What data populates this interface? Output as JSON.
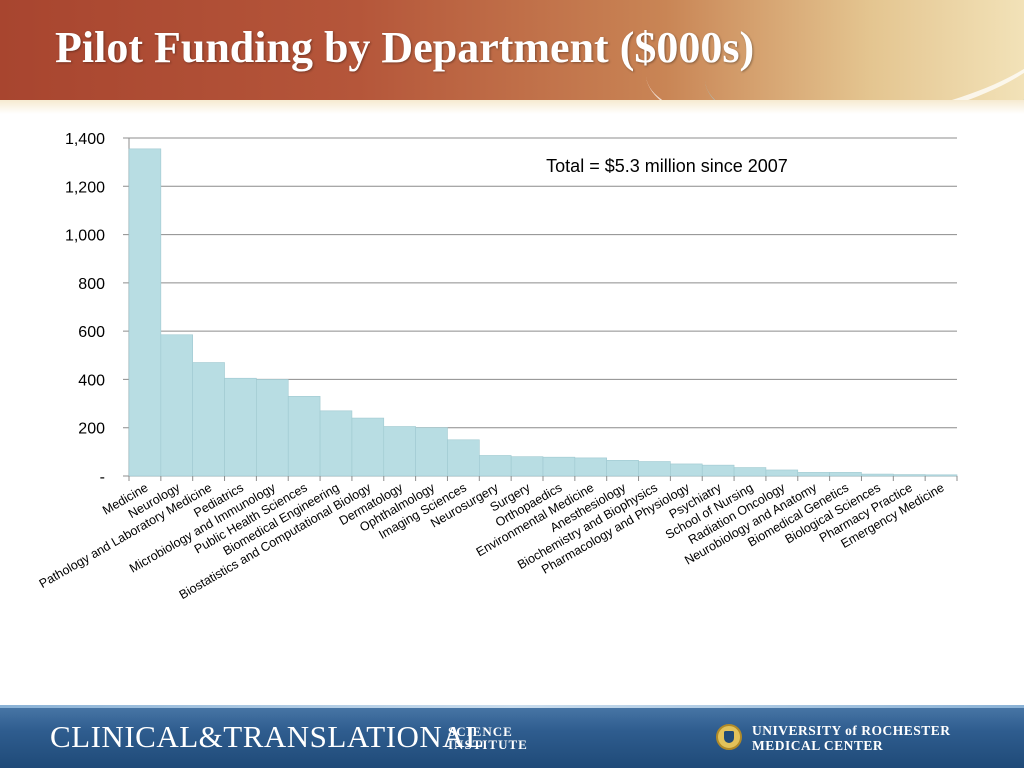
{
  "title": "Pilot Funding by Department ($000s)",
  "annotation": "Total = $5.3 million since 2007",
  "footer": {
    "left_logo_main": "CLINICAL&TRANSLATIONAL",
    "left_logo_sub": "SCIENCE\nINSTITUTE",
    "right_logo": "UNIVERSITY of ROCHESTER\nMEDICAL CENTER"
  },
  "colors": {
    "bar_fill": "#b8dde3",
    "bar_stroke": "#9fc9d0",
    "grid": "#8c8c8c",
    "text": "#000000"
  },
  "chart_data": {
    "type": "bar",
    "title": "Pilot Funding by Department ($000s)",
    "xlabel": "",
    "ylabel": "",
    "ylim": [
      0,
      1400
    ],
    "yticks": [
      0,
      200,
      400,
      600,
      800,
      1000,
      1200,
      1400
    ],
    "ytick_labels": [
      "-",
      "200",
      "400",
      "600",
      "800",
      "1,000",
      "1,200",
      "1,400"
    ],
    "grid": true,
    "legend": "none",
    "bar_gap": 0,
    "categories": [
      "Medicine",
      "Neurology",
      "Pathology and Laboratory Medicine",
      "Pediatrics",
      "Microbiology and Immunology",
      "Public Health Sciences",
      "Biomedical Engineering",
      "Biostatistics and Computational Biology",
      "Dermatology",
      "Ophthalmology",
      "Imaging Sciences",
      "Neurosurgery",
      "Surgery",
      "Orthopaedics",
      "Environmental Medicine",
      "Anesthesiology",
      "Biochemistry and Biophysics",
      "Pharmacology and Physiology",
      "Psychiatry",
      "School of Nursing",
      "Radiation Oncology",
      "Neurobiology and Anatomy",
      "Biomedical Genetics",
      "Biological Sciences",
      "Pharmacy Practice",
      "Emergency Medicine"
    ],
    "values": [
      1355,
      585,
      470,
      405,
      400,
      330,
      270,
      240,
      205,
      200,
      150,
      85,
      80,
      78,
      75,
      65,
      60,
      50,
      45,
      35,
      25,
      15,
      15,
      8,
      6,
      5
    ]
  }
}
